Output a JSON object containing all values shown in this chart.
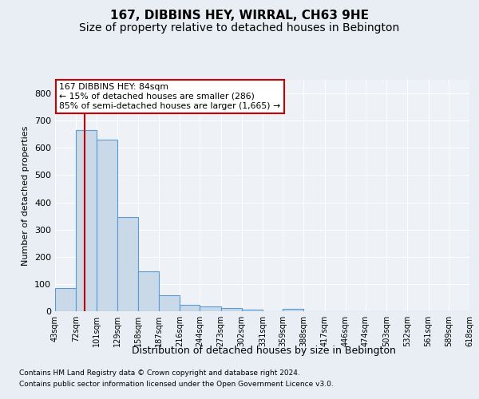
{
  "title": "167, DIBBINS HEY, WIRRAL, CH63 9HE",
  "subtitle": "Size of property relative to detached houses in Bebington",
  "xlabel": "Distribution of detached houses by size in Bebington",
  "ylabel": "Number of detached properties",
  "footer_line1": "Contains HM Land Registry data © Crown copyright and database right 2024.",
  "footer_line2": "Contains public sector information licensed under the Open Government Licence v3.0.",
  "bins": [
    43,
    72,
    101,
    129,
    158,
    187,
    216,
    244,
    273,
    302,
    331,
    359,
    388,
    417,
    446,
    474,
    503,
    532,
    561,
    589,
    618
  ],
  "bar_heights": [
    85,
    665,
    630,
    345,
    148,
    58,
    22,
    17,
    12,
    7,
    0,
    8,
    0,
    0,
    0,
    0,
    0,
    0,
    0,
    0
  ],
  "bar_color": "#c9d9e8",
  "bar_edge_color": "#5b9bd5",
  "property_size": 84,
  "property_line_color": "#cc0000",
  "annotation_line1": "167 DIBBINS HEY: 84sqm",
  "annotation_line2": "← 15% of detached houses are smaller (286)",
  "annotation_line3": "85% of semi-detached houses are larger (1,665) →",
  "annotation_box_color": "#ffffff",
  "annotation_box_edge_color": "#cc0000",
  "ylim": [
    0,
    850
  ],
  "yticks": [
    0,
    100,
    200,
    300,
    400,
    500,
    600,
    700,
    800
  ],
  "bg_color": "#e8eef4",
  "plot_bg_color": "#eef2f7",
  "grid_color": "#ffffff",
  "title_fontsize": 11,
  "subtitle_fontsize": 10
}
